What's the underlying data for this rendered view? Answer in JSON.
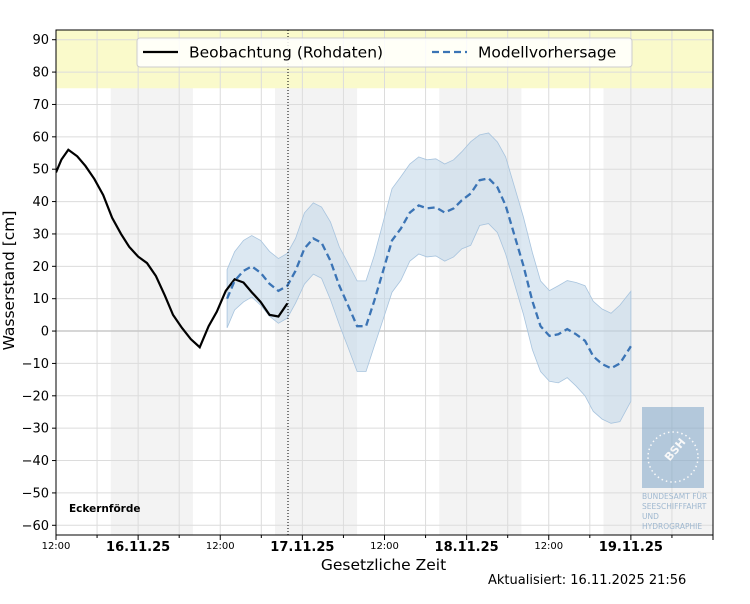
{
  "chart_data": {
    "type": "line",
    "xlabel": "Gesetzliche Zeit",
    "ylabel": "Wasserstand [cm]",
    "station": "Eckernförde",
    "updated": "Aktualisiert: 16.11.2025 21:56",
    "x_start": "15.11.2025 12:00",
    "x_unit": "hours since x_start",
    "xlim": [
      0,
      96
    ],
    "ylim": [
      -63,
      93
    ],
    "yticks": [
      -60,
      -50,
      -40,
      -30,
      -20,
      -10,
      0,
      10,
      20,
      30,
      40,
      50,
      60,
      70,
      80,
      90
    ],
    "xticks": [
      {
        "h": 0,
        "label": "12:00",
        "bold": false
      },
      {
        "h": 12,
        "label": "16.11.25",
        "bold": true
      },
      {
        "h": 24,
        "label": "12:00",
        "bold": false
      },
      {
        "h": 36,
        "label": "17.11.25",
        "bold": true
      },
      {
        "h": 48,
        "label": "12:00",
        "bold": false
      },
      {
        "h": 60,
        "label": "18.11.25",
        "bold": true
      },
      {
        "h": 72,
        "label": "12:00",
        "bold": false
      },
      {
        "h": 84,
        "label": "19.11.25",
        "bold": true
      }
    ],
    "grid": true,
    "legend_position": "top-center",
    "night_shading_hours": [
      [
        8,
        20
      ],
      [
        32,
        44
      ],
      [
        56,
        68
      ],
      [
        80,
        96
      ]
    ],
    "warning_band": [
      75,
      93
    ],
    "now_hour": 33.9,
    "colors": {
      "observation": "#000000",
      "forecast": "#3b74b5",
      "band": "#c5d9ea",
      "warning": "#fafacb",
      "night": "#f3f3f3"
    },
    "series": [
      {
        "name": "Beobachtung (Rohdaten)",
        "style": "solid",
        "x": [
          0,
          0.8,
          1.8,
          3.1,
          4.3,
          5.6,
          6.9,
          8.2,
          9.5,
          10.7,
          12,
          13.3,
          14.6,
          15.9,
          17.1,
          18.4,
          19.7,
          21,
          22.3,
          23.5,
          24.8,
          26.1,
          27.4,
          28.6,
          29.9,
          31.2,
          32.5,
          33.8
        ],
        "y": [
          49,
          53,
          56,
          54,
          51,
          47,
          42,
          35,
          30,
          26,
          23,
          21,
          17,
          11,
          5,
          1,
          -2.5,
          -5,
          1.5,
          6,
          12.4,
          16,
          15,
          12,
          9,
          5,
          4.5,
          8.5
        ]
      },
      {
        "name": "Modellvorhersage",
        "style": "dashed",
        "x": [
          25,
          26.1,
          27.4,
          28.6,
          29.9,
          31.2,
          32.5,
          33.8,
          35,
          36.3,
          37.6,
          38.8,
          40.1,
          41.4,
          42.7,
          44,
          45.3,
          46.5,
          47.8,
          49.1,
          50.4,
          51.7,
          53,
          54.2,
          55.5,
          56.8,
          58.1,
          59.3,
          60.6,
          61.9,
          63.2,
          64.5,
          65.7,
          67,
          68.3,
          69.6,
          70.8,
          72.1,
          73.4,
          74.7,
          76,
          77.3,
          78.5,
          79.8,
          81.1,
          82.4,
          84
        ],
        "y": [
          10,
          15.5,
          18.6,
          20,
          18,
          14.6,
          12.4,
          14,
          18.6,
          25.5,
          28.6,
          27.3,
          21.7,
          14,
          7.8,
          1.5,
          1.5,
          9.3,
          18.6,
          28,
          31.7,
          36.6,
          38.8,
          37.9,
          38.2,
          36.6,
          37.9,
          40.4,
          42.5,
          46.6,
          47.2,
          44.4,
          38.8,
          29.5,
          20.2,
          9.3,
          1.5,
          -1.5,
          -1,
          0.6,
          -1,
          -3,
          -7.8,
          -10.2,
          -11.5,
          -10,
          -4.7
        ],
        "band_upper": [
          19,
          24.5,
          28,
          29.5,
          28,
          24.6,
          22.4,
          24,
          28.6,
          36.5,
          39.6,
          38.3,
          33.7,
          26,
          20.8,
          15.5,
          15.5,
          23.3,
          33.6,
          44,
          47.7,
          51.6,
          53.8,
          52.9,
          53.2,
          51.6,
          52.9,
          55.4,
          58.5,
          60.6,
          61.2,
          58.4,
          53.8,
          44.5,
          35.2,
          24.3,
          15.5,
          12.5,
          14,
          15.6,
          15,
          14,
          9.2,
          6.8,
          5.5,
          8,
          12.3
        ],
        "band_lower": [
          1,
          6.5,
          9,
          10.5,
          8,
          4.6,
          2.4,
          4,
          8.6,
          14.5,
          17.6,
          16.3,
          9.7,
          2,
          -5.2,
          -12.5,
          -12.5,
          -4.7,
          3.6,
          12,
          15.7,
          21.6,
          23.8,
          22.9,
          23.2,
          21.6,
          22.9,
          25.4,
          26.5,
          32.6,
          33.2,
          30.4,
          23.8,
          14.5,
          5.2,
          -5.7,
          -12.5,
          -15.5,
          -16,
          -14.4,
          -17,
          -20,
          -24.8,
          -27.2,
          -28.5,
          -28,
          -21.7
        ]
      }
    ],
    "logo": {
      "text": "BSH",
      "caption": [
        "BUNDESAMT FÜR",
        "SEESCHIFFFAHRT",
        "UND",
        "HYDROGRAPHIE"
      ]
    }
  }
}
